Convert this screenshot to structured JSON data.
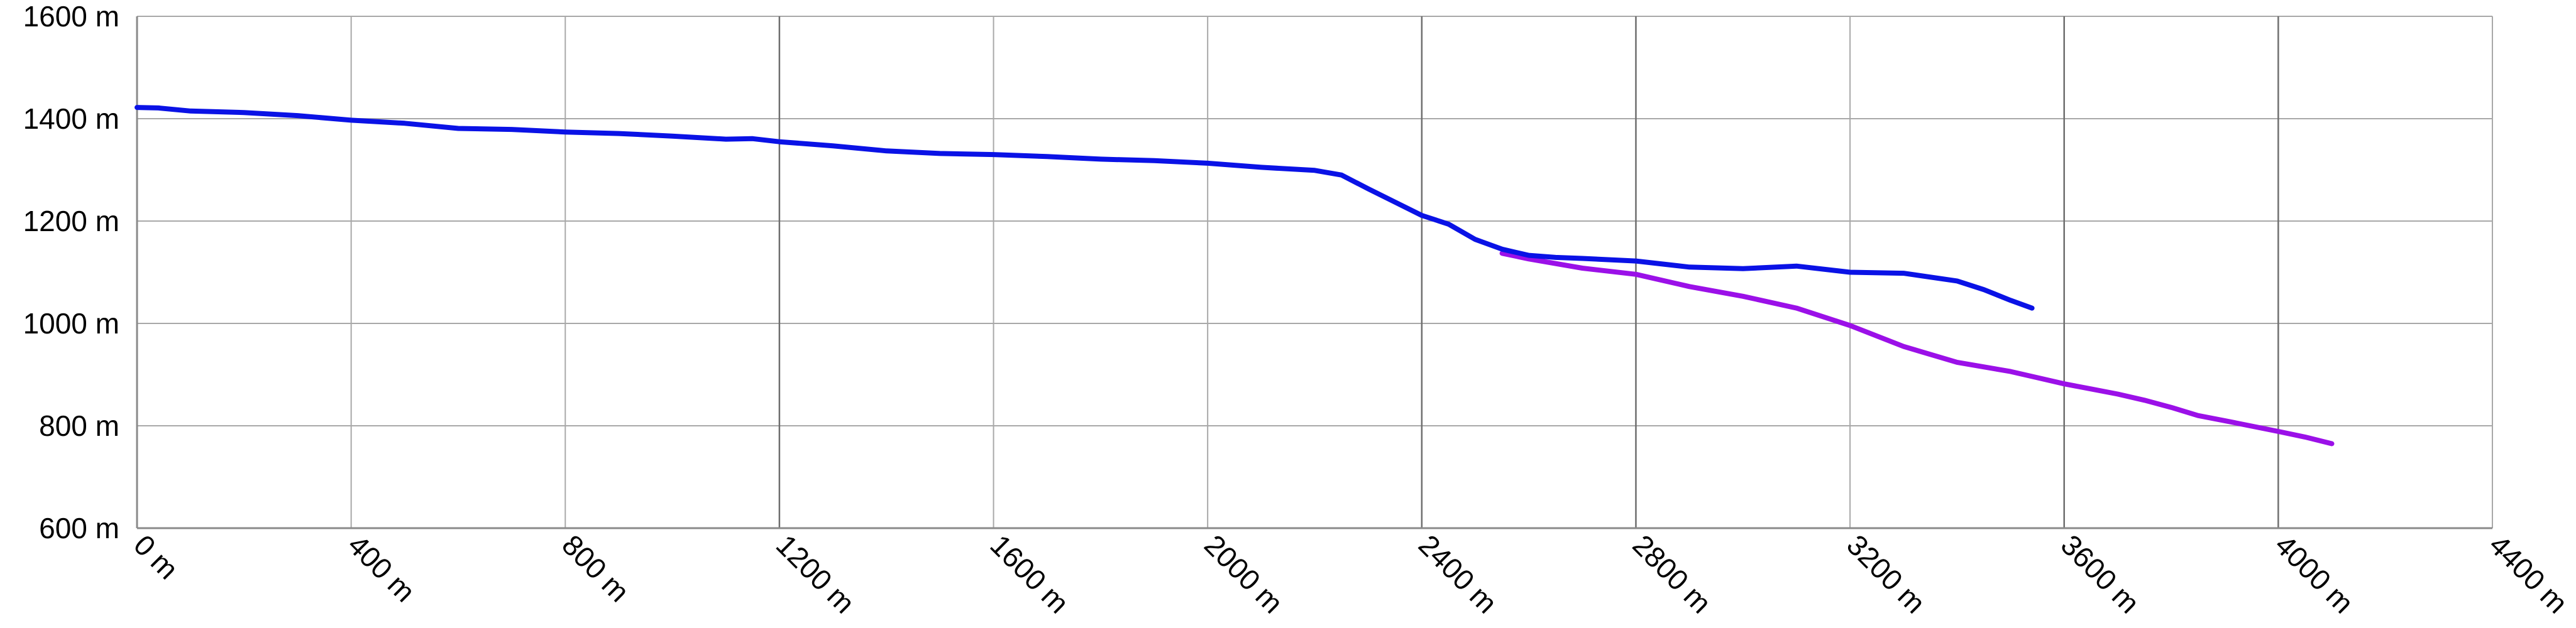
{
  "chart_data": {
    "type": "line",
    "title": "",
    "xlabel": "",
    "ylabel": "",
    "xlim": [
      0,
      4400
    ],
    "ylim": [
      600,
      1600
    ],
    "grid": true,
    "x_ticks": [
      0,
      400,
      800,
      1200,
      1600,
      2000,
      2400,
      2800,
      3200,
      3600,
      4000,
      4400
    ],
    "x_tick_labels": [
      "0 m",
      "400 m",
      "800 m",
      "1200 m",
      "1600 m",
      "2000 m",
      "2400 m",
      "2800 m",
      "3200 m",
      "3600 m",
      "4000 m",
      "4400 m"
    ],
    "y_ticks": [
      600,
      800,
      1000,
      1200,
      1400,
      1600
    ],
    "y_tick_labels": [
      "600 m",
      "800 m",
      "1000 m",
      "1200 m",
      "1400 m",
      "1600 m"
    ],
    "series": [
      {
        "color": "#0a12e6",
        "points": [
          [
            0,
            1422
          ],
          [
            40,
            1421
          ],
          [
            100,
            1415
          ],
          [
            200,
            1412
          ],
          [
            300,
            1406
          ],
          [
            400,
            1397
          ],
          [
            500,
            1391
          ],
          [
            600,
            1381
          ],
          [
            700,
            1379
          ],
          [
            800,
            1374
          ],
          [
            900,
            1371
          ],
          [
            1000,
            1366
          ],
          [
            1100,
            1360
          ],
          [
            1150,
            1361
          ],
          [
            1200,
            1355
          ],
          [
            1300,
            1347
          ],
          [
            1400,
            1337
          ],
          [
            1500,
            1332
          ],
          [
            1600,
            1330
          ],
          [
            1700,
            1326
          ],
          [
            1800,
            1321
          ],
          [
            1900,
            1318
          ],
          [
            2000,
            1313
          ],
          [
            2100,
            1305
          ],
          [
            2200,
            1299
          ],
          [
            2250,
            1290
          ],
          [
            2300,
            1263
          ],
          [
            2350,
            1237
          ],
          [
            2400,
            1211
          ],
          [
            2450,
            1194
          ],
          [
            2500,
            1164
          ],
          [
            2550,
            1145
          ],
          [
            2600,
            1133
          ],
          [
            2650,
            1129
          ],
          [
            2700,
            1127
          ],
          [
            2800,
            1122
          ],
          [
            2900,
            1110
          ],
          [
            3000,
            1107
          ],
          [
            3100,
            1112
          ],
          [
            3200,
            1100
          ],
          [
            3300,
            1098
          ],
          [
            3400,
            1083
          ],
          [
            3450,
            1066
          ],
          [
            3500,
            1045
          ],
          [
            3540,
            1030
          ]
        ]
      },
      {
        "color": "#9b10e8",
        "points": [
          [
            2550,
            1137
          ],
          [
            2600,
            1126
          ],
          [
            2700,
            1108
          ],
          [
            2800,
            1096
          ],
          [
            2900,
            1072
          ],
          [
            3000,
            1053
          ],
          [
            3100,
            1030
          ],
          [
            3200,
            996
          ],
          [
            3300,
            955
          ],
          [
            3400,
            924
          ],
          [
            3500,
            906
          ],
          [
            3550,
            894
          ],
          [
            3600,
            882
          ],
          [
            3650,
            872
          ],
          [
            3700,
            862
          ],
          [
            3750,
            850
          ],
          [
            3800,
            836
          ],
          [
            3850,
            820
          ],
          [
            3900,
            810
          ],
          [
            4000,
            789
          ],
          [
            4050,
            778
          ],
          [
            4100,
            765
          ]
        ]
      }
    ]
  }
}
